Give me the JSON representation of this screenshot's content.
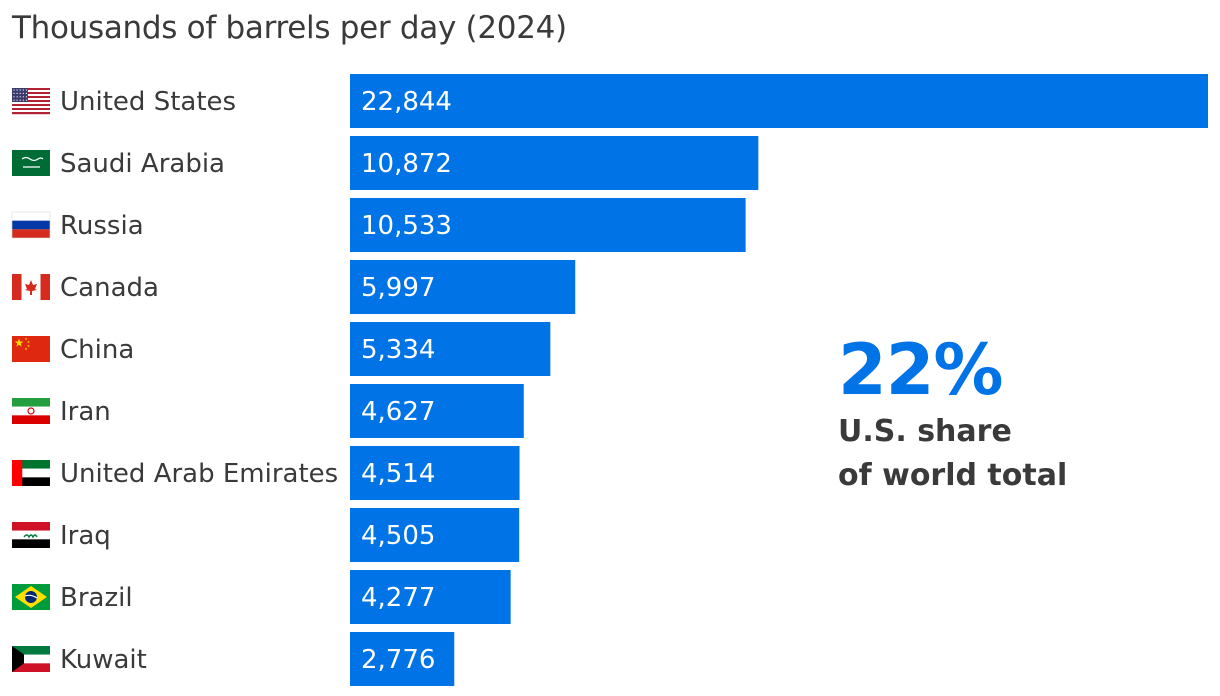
{
  "chart_data": {
    "type": "bar",
    "orientation": "horizontal",
    "title": "Thousands of barrels per day (2024)",
    "categories": [
      "United States",
      "Saudi Arabia",
      "Russia",
      "Canada",
      "China",
      "Iran",
      "United Arab Emirates",
      "Iraq",
      "Brazil",
      "Kuwait"
    ],
    "values": [
      22844,
      10872,
      10533,
      5997,
      5334,
      4627,
      4514,
      4505,
      4277,
      2776
    ],
    "value_labels": [
      "22,844",
      "10,872",
      "10,533",
      "5,997",
      "5,334",
      "4,627",
      "4,514",
      "4,505",
      "4,277",
      "2,776"
    ],
    "flags": [
      "us-flag-icon",
      "saudi-arabia-flag-icon",
      "russia-flag-icon",
      "canada-flag-icon",
      "china-flag-icon",
      "iran-flag-icon",
      "uae-flag-icon",
      "iraq-flag-icon",
      "brazil-flag-icon",
      "kuwait-flag-icon"
    ],
    "xlim": [
      0,
      22844
    ],
    "grid": false,
    "bar_color": "#0073E6",
    "callout": {
      "value": "22%",
      "line1": "U.S. share",
      "line2": "of world total"
    }
  },
  "colors": {
    "accent": "#0073E6",
    "text": "#3a3a3a"
  }
}
